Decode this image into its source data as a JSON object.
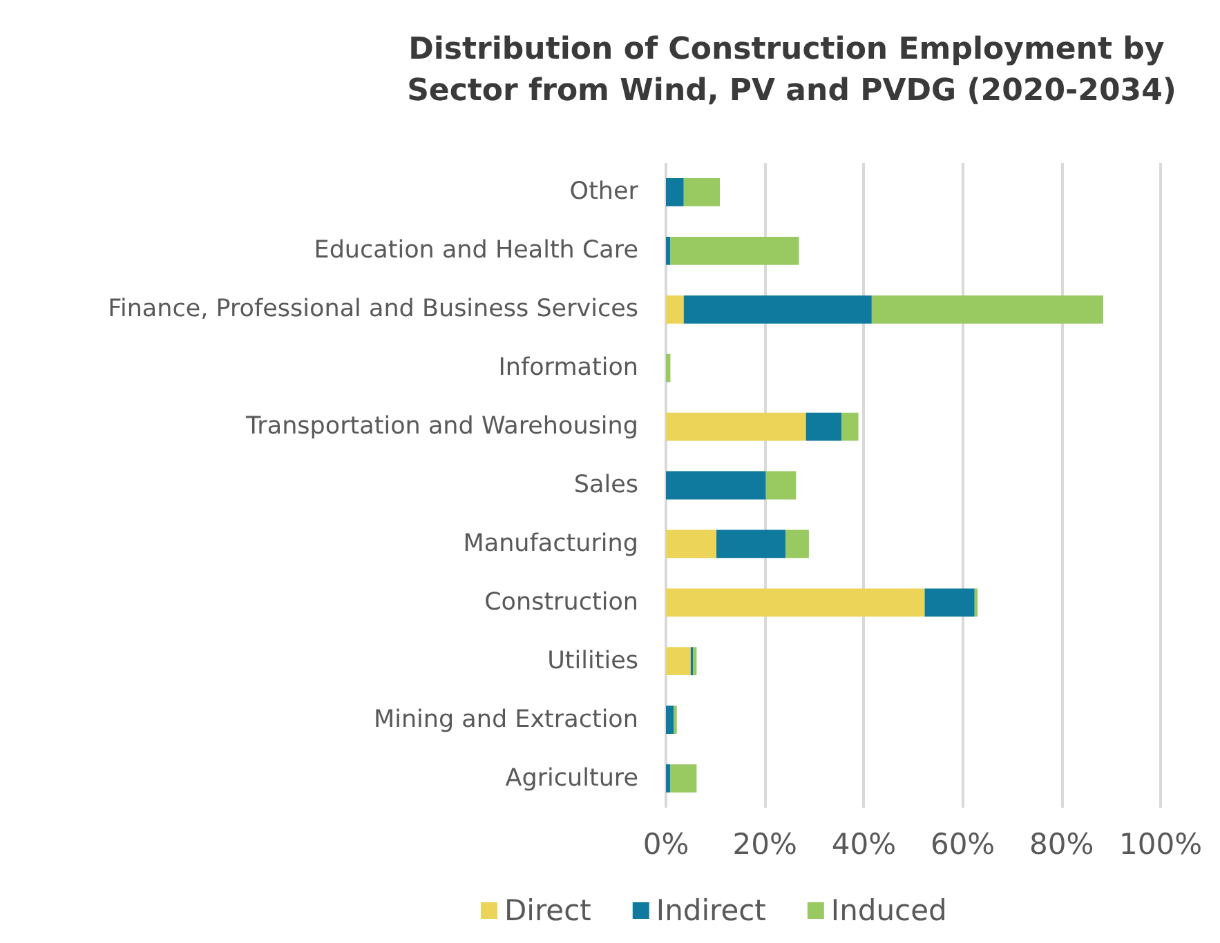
{
  "chart_data": {
    "type": "bar",
    "orientation": "horizontal",
    "stacked": true,
    "title": "Distribution of Construction Employment by Sector from Wind, PV and PVDG (2020-2034)",
    "categories": [
      "Other",
      "Education and Health Care",
      "Finance, Professional and Business Services",
      "Information",
      "Transportation and Warehousing",
      "Sales",
      "Manufacturing",
      "Construction",
      "Utilities",
      "Mining and Extraction",
      "Agriculture"
    ],
    "series": [
      {
        "name": "Direct",
        "color": "#ebd457",
        "values": [
          0,
          0,
          3.6,
          0,
          28.3,
          0,
          10.2,
          52.3,
          5,
          0,
          0
        ]
      },
      {
        "name": "Indirect",
        "color": "#0f7a9e",
        "values": [
          3.6,
          0.9,
          38,
          0,
          7.2,
          20.2,
          14,
          10.1,
          0.5,
          1.6,
          0.9
        ]
      },
      {
        "name": "Induced",
        "color": "#99ca61",
        "values": [
          7.3,
          26,
          46.8,
          0.9,
          3.4,
          6.1,
          4.7,
          0.6,
          0.7,
          0.6,
          5.3
        ]
      }
    ],
    "xlim": [
      0,
      100
    ],
    "xticks": [
      {
        "value": 0,
        "label": "0%"
      },
      {
        "value": 20,
        "label": "20%"
      },
      {
        "value": 40,
        "label": "40%"
      },
      {
        "value": 60,
        "label": "60%"
      },
      {
        "value": 80,
        "label": "80%"
      },
      {
        "value": 100,
        "label": "100%"
      }
    ],
    "grid": "x",
    "legend": "bottom"
  }
}
